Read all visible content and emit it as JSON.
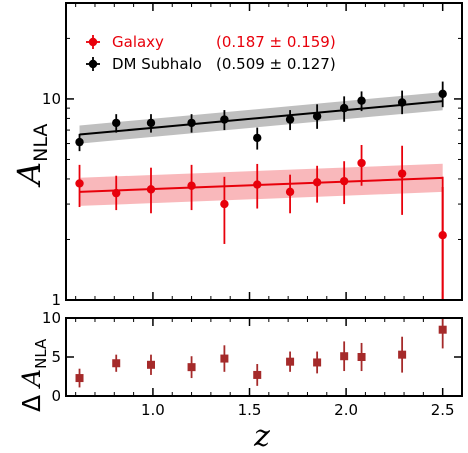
{
  "chart_data": [
    {
      "panel": "top",
      "type": "scatter",
      "yscale": "log",
      "xlim": [
        0.55,
        2.6
      ],
      "ylim": [
        1,
        30
      ],
      "xlabel": "z",
      "ylabel": "A_NLA",
      "ytick_labels": [
        "1",
        "10"
      ],
      "legend_placement": "top-left",
      "series": [
        {
          "name": "Galaxy",
          "fit_label": "(0.187 ± 0.159)",
          "color": "#e8000b",
          "x": [
            0.62,
            0.81,
            0.99,
            1.2,
            1.37,
            1.54,
            1.71,
            1.85,
            1.99,
            2.08,
            2.29,
            2.5
          ],
          "y": [
            3.8,
            3.4,
            3.55,
            3.7,
            3.0,
            3.75,
            3.45,
            3.85,
            3.9,
            4.8,
            4.25,
            2.1
          ],
          "yerr_lo": [
            0.9,
            0.6,
            0.85,
            0.9,
            1.1,
            0.9,
            0.75,
            0.8,
            0.9,
            1.1,
            1.6,
            1.1
          ],
          "yerr_hi": [
            0.9,
            0.75,
            1.0,
            1.0,
            1.1,
            1.0,
            0.75,
            0.8,
            1.0,
            1.1,
            1.6,
            2.0
          ],
          "fit_line": {
            "x": [
              0.62,
              2.5
            ],
            "y": [
              3.45,
              4.05
            ]
          },
          "fit_band_width": 0.07
        },
        {
          "name": "DM Subhalo",
          "fit_label": "(0.509 ± 0.127)",
          "color": "#000000",
          "x": [
            0.62,
            0.81,
            0.99,
            1.2,
            1.37,
            1.54,
            1.71,
            1.85,
            1.99,
            2.08,
            2.29,
            2.5
          ],
          "y": [
            6.1,
            7.6,
            7.6,
            7.6,
            7.9,
            6.4,
            7.9,
            8.2,
            9.0,
            9.8,
            9.6,
            10.6
          ],
          "yerr_lo": [
            0.6,
            0.8,
            0.8,
            0.8,
            0.9,
            0.8,
            0.9,
            1.1,
            1.3,
            1.1,
            1.2,
            1.5
          ],
          "yerr_hi": [
            0.6,
            0.8,
            0.8,
            0.8,
            0.9,
            0.8,
            0.9,
            1.2,
            1.3,
            1.1,
            1.4,
            1.6
          ],
          "fit_line": {
            "x": [
              0.62,
              2.5
            ],
            "y": [
              6.65,
              9.75
            ]
          },
          "fit_band_width": 0.045
        }
      ]
    },
    {
      "panel": "bottom",
      "type": "scatter",
      "xlim": [
        0.55,
        2.6
      ],
      "ylim": [
        0,
        10
      ],
      "xlabel": "z",
      "ylabel": "Δ A_NLA",
      "xticks": [
        1.0,
        1.5,
        2.0,
        2.5
      ],
      "xtick_labels": [
        "1.0",
        "1.5",
        "2.0",
        "2.5"
      ],
      "yticks": [
        0,
        5,
        10
      ],
      "ytick_labels": [
        "0",
        "5",
        "10"
      ],
      "series": [
        {
          "color": "#a52a2a",
          "x": [
            0.62,
            0.81,
            0.99,
            1.2,
            1.37,
            1.54,
            1.71,
            1.85,
            1.99,
            2.08,
            2.29,
            2.5
          ],
          "y": [
            2.3,
            4.2,
            4.0,
            3.7,
            4.8,
            2.7,
            4.4,
            4.3,
            5.1,
            5.0,
            5.3,
            8.5
          ],
          "yerr": [
            1.2,
            1.1,
            1.3,
            1.4,
            1.7,
            1.4,
            1.3,
            1.4,
            1.9,
            1.8,
            2.3,
            2.4
          ]
        }
      ]
    }
  ]
}
